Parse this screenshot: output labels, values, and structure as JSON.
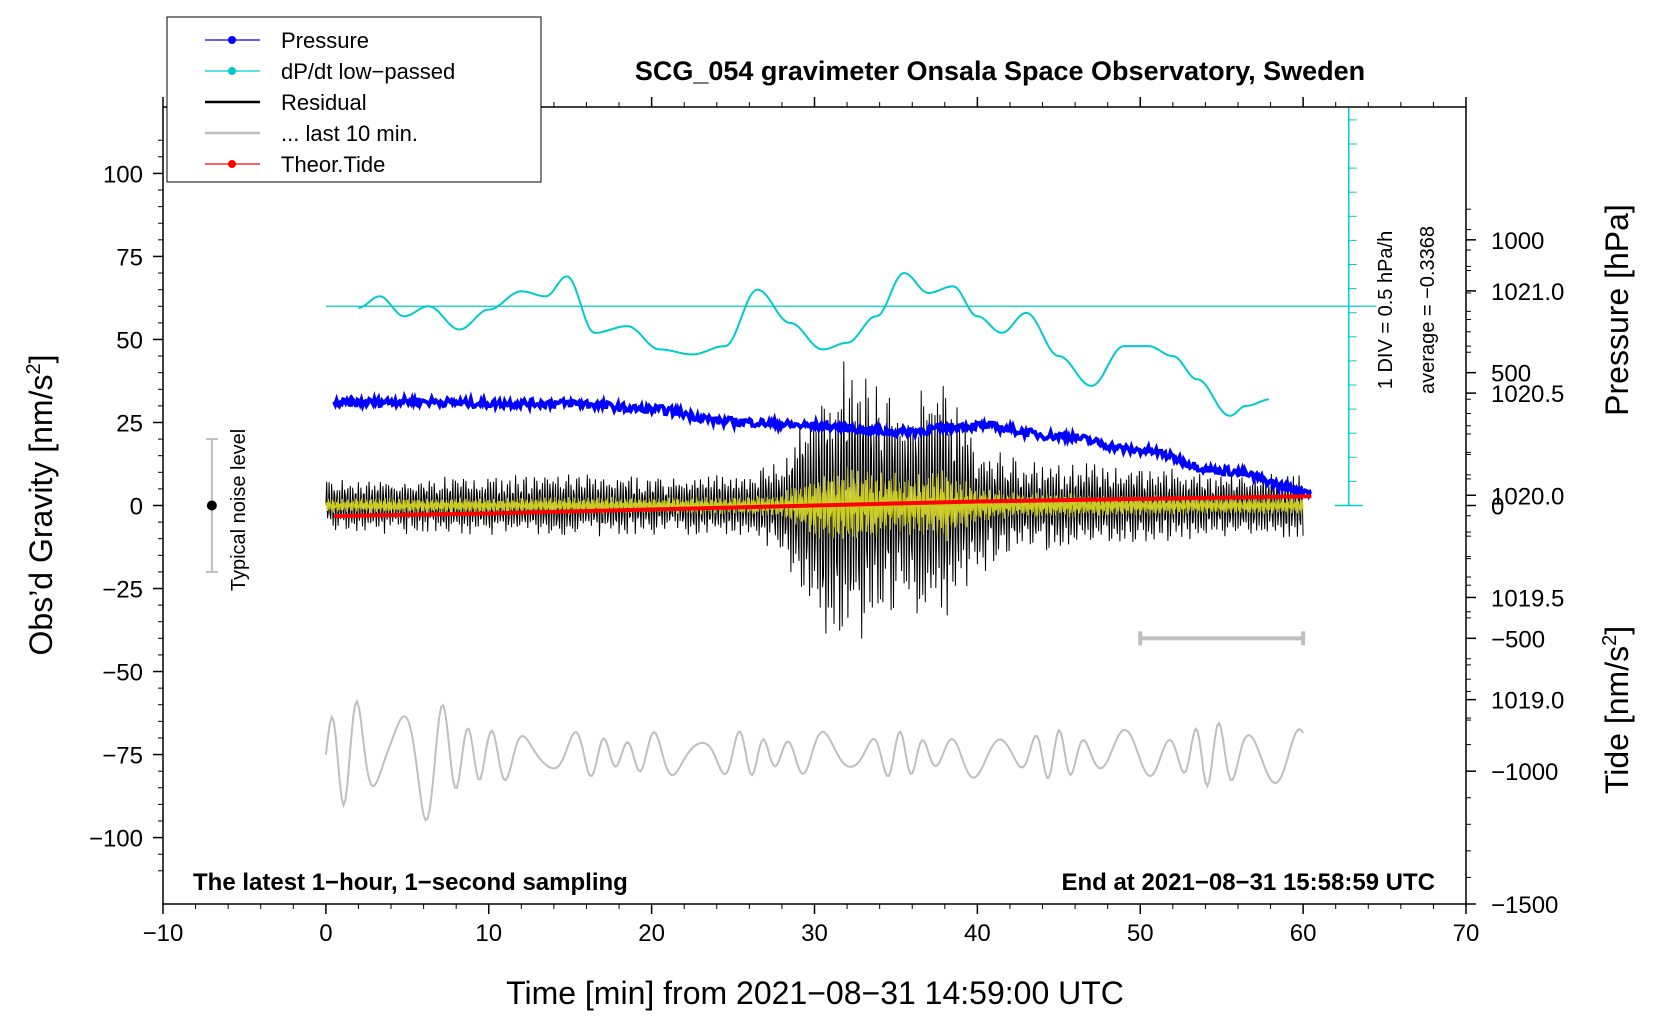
{
  "chart_data": {
    "type": "line",
    "title": "SCG_054 gravimeter Onsala Space Observatory, Sweden",
    "xlabel": "Time [min] from 2021−08−31 14:59:00 UTC",
    "ylabel_left": "Obs’d Gravity [nm/s",
    "ylabel_left_sup": "2",
    "ylabel_left_end": "]",
    "ylabel_right_pressure": "Pressure [hPa]",
    "ylabel_right_tide": "Tide [nm/s",
    "ylabel_right_tide_sup": "2",
    "ylabel_right_tide_end": "]",
    "xlim": [
      -10,
      70
    ],
    "ylim": [
      -120,
      120
    ],
    "pressure_lim": [
      1018.0,
      1021.9
    ],
    "tide_lim": [
      -1500,
      1500
    ],
    "x_ticks": [
      "−10",
      "0",
      "10",
      "20",
      "30",
      "40",
      "50",
      "60",
      "70"
    ],
    "y_ticks": [
      "100",
      "75",
      "50",
      "25",
      "0",
      "−25",
      "−50",
      "−75",
      "−100"
    ],
    "pressure_ticks": [
      "1021.0",
      "1020.5",
      "1020.0",
      "1019.5",
      "1019.0"
    ],
    "tide_ticks": [
      "1000",
      "500",
      "0",
      "−500",
      "−1000",
      "−1500"
    ],
    "legend": [
      {
        "label": "Pressure",
        "color": "#0000ff"
      },
      {
        "label": "dP/dt low−passed",
        "color": "#00cccc"
      },
      {
        "label": "Residual",
        "color": "#000000"
      },
      {
        "label": "... last 10 min.",
        "color": "#bfbfbf"
      },
      {
        "label": "Theor.Tide",
        "color": "#ff0000"
      }
    ],
    "bottom_left_note": "The latest 1−hour, 1−second sampling",
    "bottom_right_note": "End at 2021−08−31 15:58:59 UTC",
    "noise_label": "Typical noise level",
    "noise_range": [
      -20,
      20
    ],
    "dpdt_scale_label": "1 DIV = 0.5 hPa/h",
    "dpdt_average_label": "average = −0.3368",
    "dpdt_zero_gravity": 60,
    "period_bar_minutes": [
      50,
      60
    ],
    "series": [
      {
        "name": "Pressure",
        "units": "hPa",
        "x": [
          0.5,
          5,
          10,
          15,
          20,
          25,
          30,
          35,
          40,
          45,
          50,
          55,
          60.5
        ],
        "values": [
          1020.45,
          1020.46,
          1020.45,
          1020.45,
          1020.42,
          1020.36,
          1020.34,
          1020.31,
          1020.34,
          1020.29,
          1020.22,
          1020.12,
          1020.02
        ]
      },
      {
        "name": "dP/dt low-passed",
        "units": "gravity-scale",
        "x": [
          2,
          3.3,
          4.8,
          6.3,
          8.2,
          10,
          12,
          13.5,
          14.8,
          16.5,
          18.5,
          20.5,
          22.5,
          24.5,
          26.5,
          28.5,
          30.5,
          32,
          33.8,
          35.5,
          37,
          38.5,
          40,
          41.5,
          43,
          45,
          47,
          49,
          50.5,
          52,
          53.5,
          55.5,
          56.5,
          58
        ],
        "values": [
          59.5,
          63,
          57,
          60,
          53,
          59,
          64.5,
          63,
          69,
          52,
          54,
          47,
          45.5,
          48,
          65,
          55,
          47,
          49,
          57,
          70,
          64,
          66,
          57,
          52,
          58,
          45,
          36,
          48,
          48,
          45,
          38,
          27,
          30,
          32
        ]
      },
      {
        "name": "Residual",
        "units": "nm/s2",
        "x": [
          0,
          5,
          10,
          15,
          20,
          25,
          28,
          30,
          32,
          34,
          36,
          38,
          40,
          42,
          45,
          50,
          55,
          60
        ],
        "envelope": [
          8,
          9,
          9,
          10,
          9,
          10,
          14,
          38,
          45,
          38,
          34,
          40,
          22,
          15,
          14,
          12,
          10,
          10
        ]
      },
      {
        "name": "... last 10 min.",
        "units": "nm/s2",
        "x": [
          0,
          2,
          4,
          6,
          8,
          9,
          10,
          15,
          20,
          30,
          40,
          50,
          55,
          57,
          60
        ],
        "envelope": [
          12,
          18,
          14,
          20,
          19,
          14,
          8,
          7,
          7,
          7,
          7,
          8,
          10,
          12,
          8
        ]
      },
      {
        "name": "Theor.Tide",
        "units": "nm/s2",
        "x": [
          0.5,
          10,
          20,
          30,
          40,
          50,
          60.5
        ],
        "values": [
          -40,
          -30,
          -15,
          0,
          15,
          25,
          35
        ]
      }
    ]
  }
}
